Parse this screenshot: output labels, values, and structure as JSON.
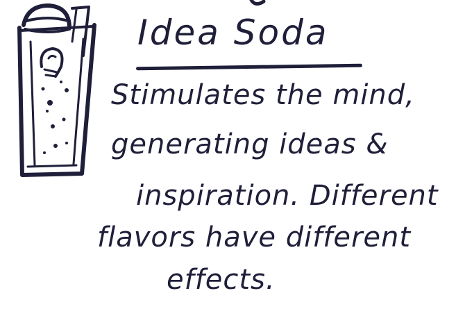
{
  "style": {
    "ink_color": "#1f1f3a",
    "background": "#ffffff"
  },
  "illustration": {
    "subject": "soda-glass-with-straw-and-lightbulb-icon"
  },
  "note": {
    "title": "Idea Soda",
    "lines": [
      "Stimulates the mind,",
      "generating ideas &",
      "inspiration. Different",
      "flavors have different",
      "effects."
    ]
  }
}
